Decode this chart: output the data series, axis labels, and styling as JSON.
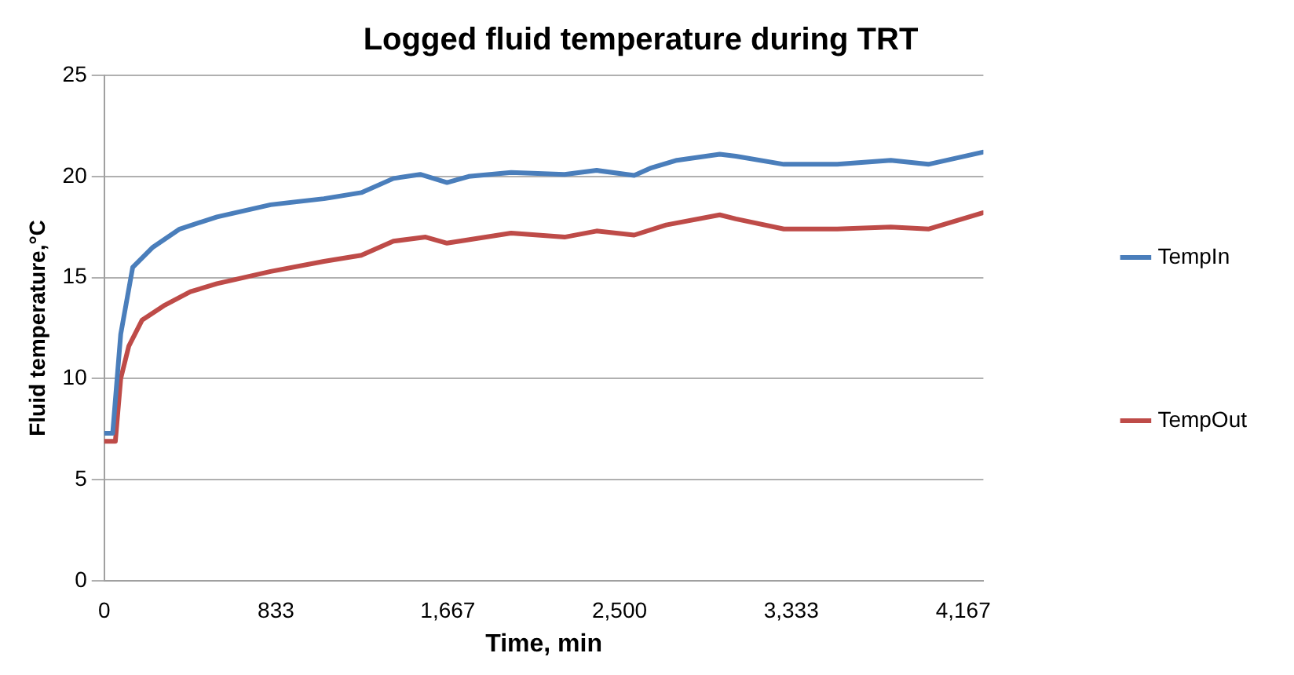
{
  "chart_data": {
    "type": "line",
    "title": "Logged fluid temperature during TRT",
    "xlabel": "Time, min",
    "ylabel": "Fluid temperature,°C",
    "xlim": [
      0,
      4265
    ],
    "xticks": [
      0,
      833,
      {
        "value": 1667,
        "label": "1,667"
      },
      {
        "value": 2500,
        "label": "2,500"
      },
      {
        "value": 3333,
        "label": "3,333"
      },
      {
        "value": 4167,
        "label": "4,167"
      }
    ],
    "ylim": [
      0,
      25
    ],
    "yticks": [
      0,
      5,
      10,
      15,
      20,
      25
    ],
    "grid": "y",
    "legend": "right",
    "marker": "none",
    "line_style": "solid",
    "series": [
      {
        "name": "TempIn",
        "color": "#4a7ebb",
        "x": [
          2,
          41,
          80,
          138,
          236,
          366,
          547,
          807,
          1066,
          1247,
          1403,
          1533,
          1663,
          1768,
          1974,
          2233,
          2389,
          2571,
          2648,
          2778,
          2986,
          3064,
          3297,
          3556,
          3816,
          3998,
          4262
        ],
        "values": [
          7.3,
          7.3,
          12.2,
          15.5,
          16.5,
          17.4,
          18.0,
          18.6,
          18.9,
          19.2,
          19.9,
          20.1,
          19.7,
          20.0,
          20.2,
          20.1,
          20.3,
          20.05,
          20.4,
          20.8,
          21.1,
          21.0,
          20.6,
          20.6,
          20.8,
          20.6,
          21.2
        ]
      },
      {
        "name": "TempOut",
        "color": "#be4b48",
        "x": [
          2,
          54,
          80,
          119,
          184,
          288,
          418,
          547,
          677,
          807,
          1066,
          1247,
          1403,
          1559,
          1663,
          1974,
          2233,
          2389,
          2571,
          2726,
          2986,
          3064,
          3297,
          3556,
          3816,
          3998,
          4262
        ],
        "values": [
          6.9,
          6.9,
          10.0,
          11.6,
          12.9,
          13.6,
          14.3,
          14.7,
          15.0,
          15.3,
          15.8,
          16.1,
          16.8,
          17.0,
          16.7,
          17.2,
          17.0,
          17.3,
          17.1,
          17.6,
          18.1,
          17.9,
          17.4,
          17.4,
          17.5,
          17.4,
          18.2
        ]
      }
    ]
  }
}
